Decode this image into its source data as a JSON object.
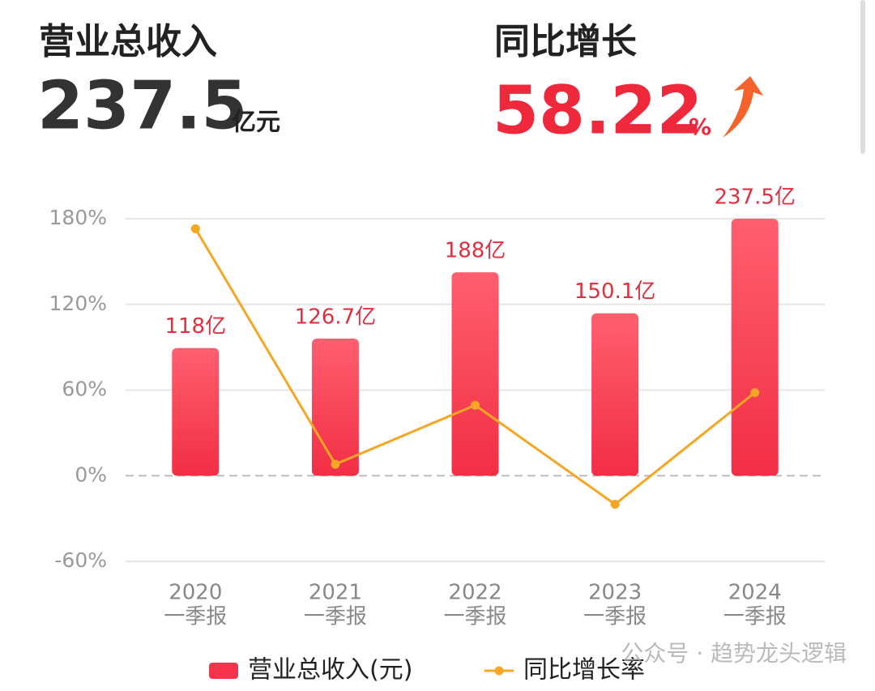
{
  "header": {
    "revenue_title": "营业总收入",
    "revenue_value": "237.5",
    "revenue_unit": "亿元",
    "growth_title": "同比增长",
    "growth_value": "58.22",
    "growth_unit": "%"
  },
  "chart_data": {
    "type": "bar-line",
    "categories": [
      [
        "2020",
        "一季报"
      ],
      [
        "2021",
        "一季报"
      ],
      [
        "2022",
        "一季报"
      ],
      [
        "2023",
        "一季报"
      ],
      [
        "2024",
        "一季报"
      ]
    ],
    "series": [
      {
        "name": "营业总收入(元)",
        "type": "bar",
        "axis": "y2",
        "color": "#f5344b",
        "values": [
          118,
          126.7,
          188,
          150.1,
          237.5
        ],
        "value_labels": [
          "118亿",
          "126.7亿",
          "188亿",
          "150.1亿",
          "237.5亿"
        ]
      },
      {
        "name": "同比增长率",
        "type": "line",
        "color": "#f5a623",
        "values": [
          173,
          8,
          49.4,
          -20,
          58.22
        ]
      }
    ],
    "ylim": [
      -60,
      180
    ],
    "yticks": [
      {
        "value": -60,
        "label": "-60%"
      },
      {
        "value": 0,
        "label": "0%"
      },
      {
        "value": 60,
        "label": "60%"
      },
      {
        "value": 120,
        "label": "120%"
      },
      {
        "value": 180,
        "label": "180%"
      }
    ],
    "y2lim": [
      -79.17,
      237.5
    ],
    "grid": true,
    "watermark": "公众号 · 趋势龙头逻辑"
  }
}
